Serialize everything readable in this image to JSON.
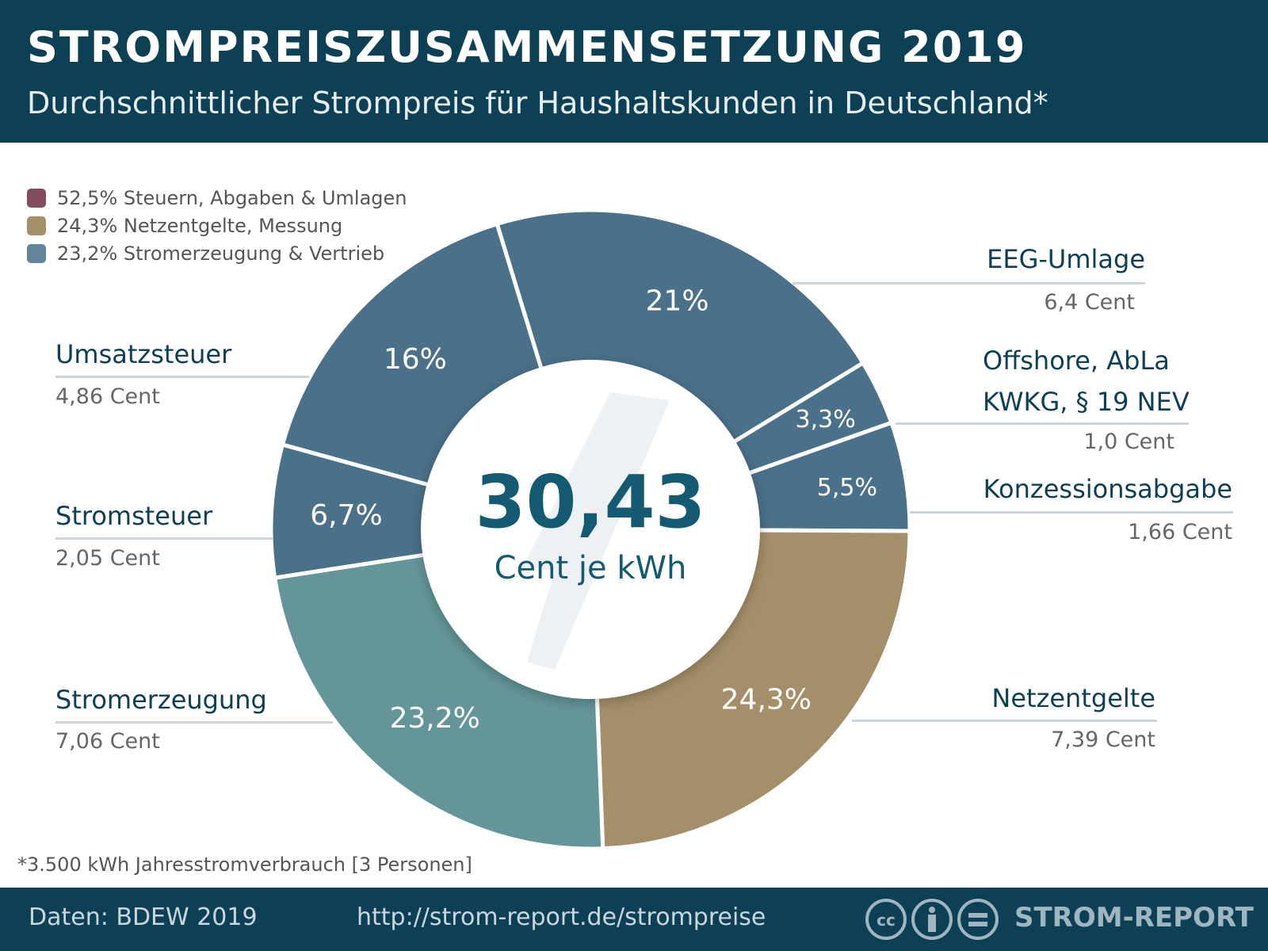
{
  "header": {
    "title": "STROMPREISZUSAMMENSETZUNG 2019",
    "subtitle": "Durchschnittlicher Strompreis für Haushaltskunden in Deutschland*"
  },
  "chart_data": {
    "type": "pie",
    "title": "STROMPREISZUSAMMENSETZUNG 2019",
    "center_value": "30,43",
    "center_unit": "Cent je kWh",
    "legend": [
      {
        "label": "52,5% Steuern, Abgaben & Umlagen",
        "color": "#844c60"
      },
      {
        "label": "24,3% Netzentgelte, Messung",
        "color": "#a58f6a"
      },
      {
        "label": "23,2% Stromerzeugung & Vertrieb",
        "color": "#628698"
      }
    ],
    "slices": [
      {
        "name": "EEG-Umlage",
        "value": 21,
        "pct_label": "21%",
        "cent": "6,4 Cent",
        "color": "#4a7189"
      },
      {
        "name": "Offshore, AbLa\nKWKG, § 19 NEV",
        "name_lines": [
          "Offshore, AbLa",
          "KWKG, § 19 NEV"
        ],
        "value": 3.3,
        "pct_label": "3,3%",
        "cent": "1,0 Cent",
        "color": "#4a7189"
      },
      {
        "name": "Konzessionsabgabe",
        "value": 5.5,
        "pct_label": "5,5%",
        "cent": "1,66 Cent",
        "color": "#4a7189"
      },
      {
        "name": "Netzentgelte",
        "value": 24.3,
        "pct_label": "24,3%",
        "cent": "7,39 Cent",
        "color": "#a58f6a"
      },
      {
        "name": "Stromerzeugung",
        "value": 23.2,
        "pct_label": "23,2%",
        "cent": "7,06 Cent",
        "color": "#649699"
      },
      {
        "name": "Stromsteuer",
        "value": 6.7,
        "pct_label": "6,7%",
        "cent": "2,05 Cent",
        "color": "#4a7189"
      },
      {
        "name": "Umsatzsteuer",
        "value": 16,
        "pct_label": "16%",
        "cent": "4,86 Cent",
        "color": "#4a7189"
      }
    ]
  },
  "footnote": "*3.500 kWh Jahresstromverbrauch [3 Personen]",
  "footer": {
    "source": "Daten: BDEW 2019",
    "url": "http://strom-report.de/strompreise",
    "brand": "STROM-REPORT",
    "license_icons": [
      "cc-icon",
      "by-icon",
      "nd-icon"
    ]
  }
}
